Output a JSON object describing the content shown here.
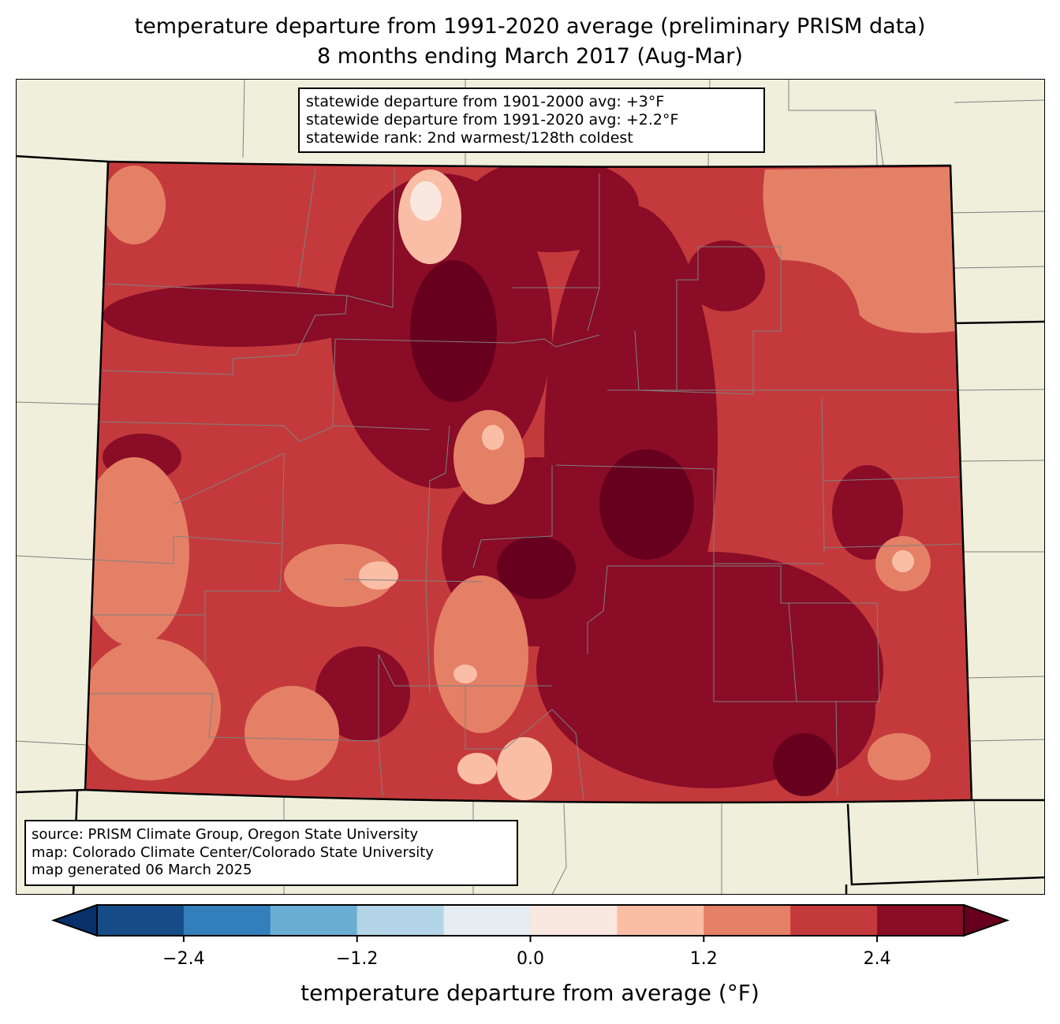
{
  "title": {
    "line1": "temperature departure from 1991-2020 average (preliminary PRISM data)",
    "line2": "8 months ending March 2017 (Aug-Mar)"
  },
  "stats_box": {
    "line1": "statewide departure from 1901-2000 avg: +3°F",
    "line2": "statewide departure from 1991-2020 avg: +2.2°F",
    "line3": "statewide rank: 2nd warmest/128th coldest"
  },
  "source_box": {
    "line1": "source: PRISM Climate Group, Oregon State University",
    "line2": "map: Colorado Climate Center/Colorado State University",
    "line3": "map generated 06 March 2025"
  },
  "colorbar": {
    "label": "temperature departure from average (°F)",
    "min": -3.0,
    "max": 3.0,
    "step": 0.6,
    "ticks": [
      "−2.4",
      "−1.2",
      "0.0",
      "1.2",
      "2.4"
    ],
    "tick_values": [
      -2.4,
      -1.2,
      0.0,
      1.2,
      2.4
    ],
    "under_color": "#08306b",
    "over_color": "#67001f",
    "colors": [
      "#154c87",
      "#327fbb",
      "#6aaed4",
      "#b3d5e7",
      "#e5edf3",
      "#f9e8df",
      "#f9bea5",
      "#e48066",
      "#c43a3c",
      "#8a0c27"
    ]
  },
  "map_colors": {
    "land_outside": "#efefdc",
    "border": "#000000",
    "county_lines": "#808080"
  }
}
